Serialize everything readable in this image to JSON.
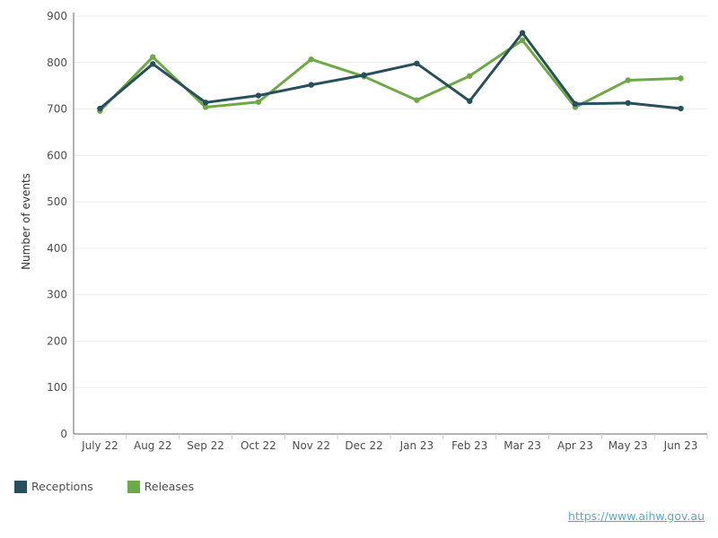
{
  "chart_data": {
    "type": "line",
    "categories": [
      "July 22",
      "Aug 22",
      "Sep 22",
      "Oct 22",
      "Nov 22",
      "Dec 22",
      "Jan 23",
      "Feb 23",
      "Mar 23",
      "Apr 23",
      "May 23",
      "Jun 23"
    ],
    "series": [
      {
        "name": "Receptions",
        "color": "#274f5c",
        "values": [
          701,
          797,
          714,
          729,
          752,
          773,
          798,
          717,
          864,
          711,
          713,
          701
        ]
      },
      {
        "name": "Releases",
        "color": "#6daa45",
        "values": [
          696,
          812,
          704,
          715,
          807,
          770,
          719,
          771,
          848,
          704,
          762,
          766
        ]
      }
    ],
    "ylabel": "Number of events",
    "xlabel": "",
    "ylim": [
      0,
      900
    ],
    "yticks": [
      0,
      100,
      200,
      300,
      400,
      500,
      600,
      700,
      800,
      900
    ],
    "grid": true,
    "legend_position": "bottom-left"
  },
  "source_url": "https://www.aihw.gov.au"
}
